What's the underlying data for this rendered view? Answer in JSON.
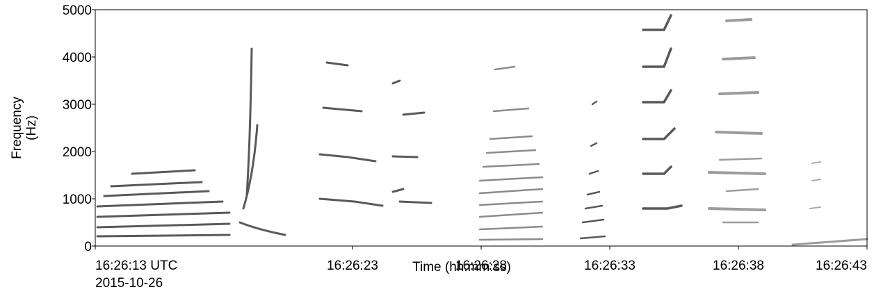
{
  "chart_data": {
    "type": "spectrogram",
    "xlabel": "Time (hh:mm:ss)",
    "ylabel": [
      "Frequency",
      "(Hz)"
    ],
    "xlim": [
      "16:26:13",
      "16:26:43"
    ],
    "xticks": [
      {
        "value": "16:26:13",
        "label": "16:26:13 UTC"
      },
      "16:26:23",
      "16:26:28",
      "16:26:33",
      "16:26:38",
      "16:26:43"
    ],
    "date": "2015-10-26",
    "ylim": [
      0,
      5000
    ],
    "yticks": [
      0,
      1000,
      2000,
      3000,
      4000,
      5000
    ],
    "color": "#000000"
  }
}
